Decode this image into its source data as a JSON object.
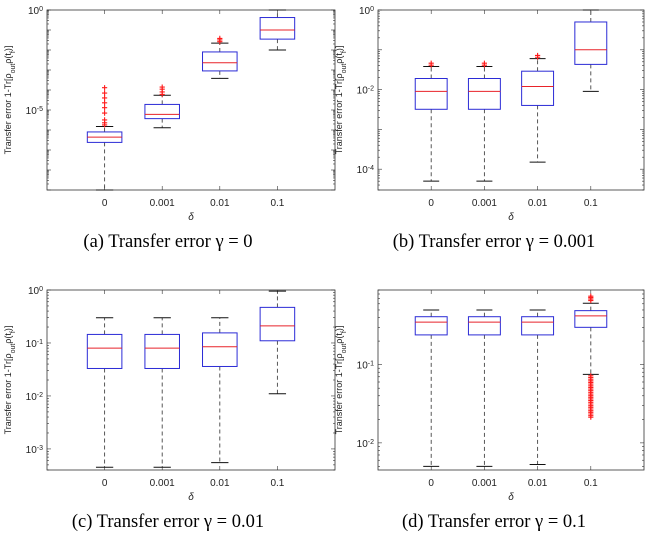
{
  "chart_data": [
    {
      "type": "box",
      "caption": "(a) Transfer error γ = 0",
      "xlabel": "δ",
      "ylabel": "Transfer error 1-Tr[ρ_out ρ(t_f)]",
      "yscale": "log",
      "ylim": [
        1e-09,
        1
      ],
      "yticks": [
        1,
        1e-05
      ],
      "ytick_labels": [
        {
          "base": "10",
          "exp": "0"
        },
        {
          "base": "10",
          "exp": "-5"
        }
      ],
      "categories": [
        "0",
        "0.001",
        "0.01",
        "0.1"
      ],
      "boxes": [
        {
          "whisker_low": 1e-09,
          "q1": 2.4e-07,
          "median": 4.4e-07,
          "q3": 8e-07,
          "whisker_high": 1.5e-06,
          "outliers": [
            1.8e-06,
            2.3e-06,
            3.2e-06,
            7e-06,
            1.3e-05,
            2.3e-05,
            4e-05,
            7e-05,
            0.00013
          ]
        },
        {
          "whisker_low": 1.3e-06,
          "q1": 3.7e-06,
          "median": 6e-06,
          "q3": 1.9e-05,
          "whisker_high": 5.5e-05,
          "outliers": [
            6e-05,
            8e-05,
            0.00011,
            0.00014
          ]
        },
        {
          "whisker_low": 0.00038,
          "q1": 0.0009,
          "median": 0.0023,
          "q3": 0.008,
          "whisker_high": 0.022,
          "outliers": [
            0.026,
            0.032,
            0.038
          ]
        },
        {
          "whisker_low": 0.01,
          "q1": 0.035,
          "median": 0.1,
          "q3": 0.42,
          "whisker_high": 1.0,
          "outliers": []
        }
      ]
    },
    {
      "type": "box",
      "caption": "(b) Transfer error γ = 0.001",
      "xlabel": "δ",
      "ylabel": "Transfer error 1-Tr[ρ_out ρ(t_f)]",
      "yscale": "log",
      "ylim": [
        3e-05,
        1
      ],
      "yticks": [
        1,
        0.01,
        0.0001
      ],
      "ytick_labels": [
        {
          "base": "10",
          "exp": "0"
        },
        {
          "base": "10",
          "exp": "-2"
        },
        {
          "base": "10",
          "exp": "-4"
        }
      ],
      "categories": [
        "0",
        "0.001",
        "0.01",
        "0.1"
      ],
      "boxes": [
        {
          "whisker_low": 5e-05,
          "q1": 0.0032,
          "median": 0.009,
          "q3": 0.019,
          "whisker_high": 0.038,
          "outliers": [
            0.041,
            0.046
          ]
        },
        {
          "whisker_low": 5e-05,
          "q1": 0.0032,
          "median": 0.009,
          "q3": 0.019,
          "whisker_high": 0.038,
          "outliers": [
            0.041,
            0.046
          ]
        },
        {
          "whisker_low": 0.00015,
          "q1": 0.004,
          "median": 0.012,
          "q3": 0.029,
          "whisker_high": 0.06,
          "outliers": [
            0.065,
            0.072
          ]
        },
        {
          "whisker_low": 0.009,
          "q1": 0.043,
          "median": 0.1,
          "q3": 0.5,
          "whisker_high": 1.0,
          "outliers": []
        }
      ]
    },
    {
      "type": "box",
      "caption": "(c) Transfer error γ = 0.01",
      "xlabel": "δ",
      "ylabel": "Transfer error 1-Tr[ρ_out ρ(t_f)]",
      "yscale": "log",
      "ylim": [
        0.0004,
        1
      ],
      "yticks": [
        1,
        0.1,
        0.01,
        0.001
      ],
      "ytick_labels": [
        {
          "base": "10",
          "exp": "0"
        },
        {
          "base": "10",
          "exp": "-1"
        },
        {
          "base": "10",
          "exp": "-2"
        },
        {
          "base": "10",
          "exp": "-3"
        }
      ],
      "categories": [
        "0",
        "0.001",
        "0.01",
        "0.1"
      ],
      "boxes": [
        {
          "whisker_low": 0.00045,
          "q1": 0.033,
          "median": 0.08,
          "q3": 0.145,
          "whisker_high": 0.3,
          "outliers": []
        },
        {
          "whisker_low": 0.00045,
          "q1": 0.033,
          "median": 0.08,
          "q3": 0.145,
          "whisker_high": 0.3,
          "outliers": []
        },
        {
          "whisker_low": 0.00055,
          "q1": 0.036,
          "median": 0.085,
          "q3": 0.155,
          "whisker_high": 0.3,
          "outliers": []
        },
        {
          "whisker_low": 0.011,
          "q1": 0.11,
          "median": 0.21,
          "q3": 0.47,
          "whisker_high": 0.95,
          "outliers": []
        }
      ]
    },
    {
      "type": "box",
      "caption": "(d) Transfer error γ = 0.1",
      "xlabel": "δ",
      "ylabel": "Transfer error 1-Tr[ρ_out ρ(t_f)]",
      "yscale": "log",
      "ylim": [
        0.0045,
        0.9
      ],
      "yticks": [
        0.1,
        0.01
      ],
      "ytick_labels": [
        {
          "base": "10",
          "exp": "-1"
        },
        {
          "base": "10",
          "exp": "-2"
        }
      ],
      "categories": [
        "0",
        "0.001",
        "0.01",
        "0.1"
      ],
      "boxes": [
        {
          "whisker_low": 0.005,
          "q1": 0.24,
          "median": 0.35,
          "q3": 0.41,
          "whisker_high": 0.5,
          "outliers": []
        },
        {
          "whisker_low": 0.005,
          "q1": 0.24,
          "median": 0.35,
          "q3": 0.41,
          "whisker_high": 0.5,
          "outliers": []
        },
        {
          "whisker_low": 0.0053,
          "q1": 0.24,
          "median": 0.35,
          "q3": 0.41,
          "whisker_high": 0.5,
          "outliers": []
        },
        {
          "whisker_low": 0.075,
          "q1": 0.3,
          "median": 0.42,
          "q3": 0.49,
          "whisker_high": 0.61,
          "outliers": [
            0.0213,
            0.0223,
            0.0234,
            0.0246,
            0.0258,
            0.0271,
            0.0285,
            0.0299,
            0.0314,
            0.033,
            0.0347,
            0.0364,
            0.0382,
            0.0401,
            0.0421,
            0.0442,
            0.0464,
            0.0487,
            0.0511,
            0.0537,
            0.0564,
            0.0592,
            0.0621,
            0.0652,
            0.0685,
            0.0719,
            0.66,
            0.69,
            0.72,
            0.75
          ]
        }
      ]
    }
  ],
  "colors": {
    "box": "#2b2bd6",
    "median": "#e8232a",
    "outlier": "#ff1a1a",
    "whisker": "#444444",
    "axis": "#333333"
  }
}
